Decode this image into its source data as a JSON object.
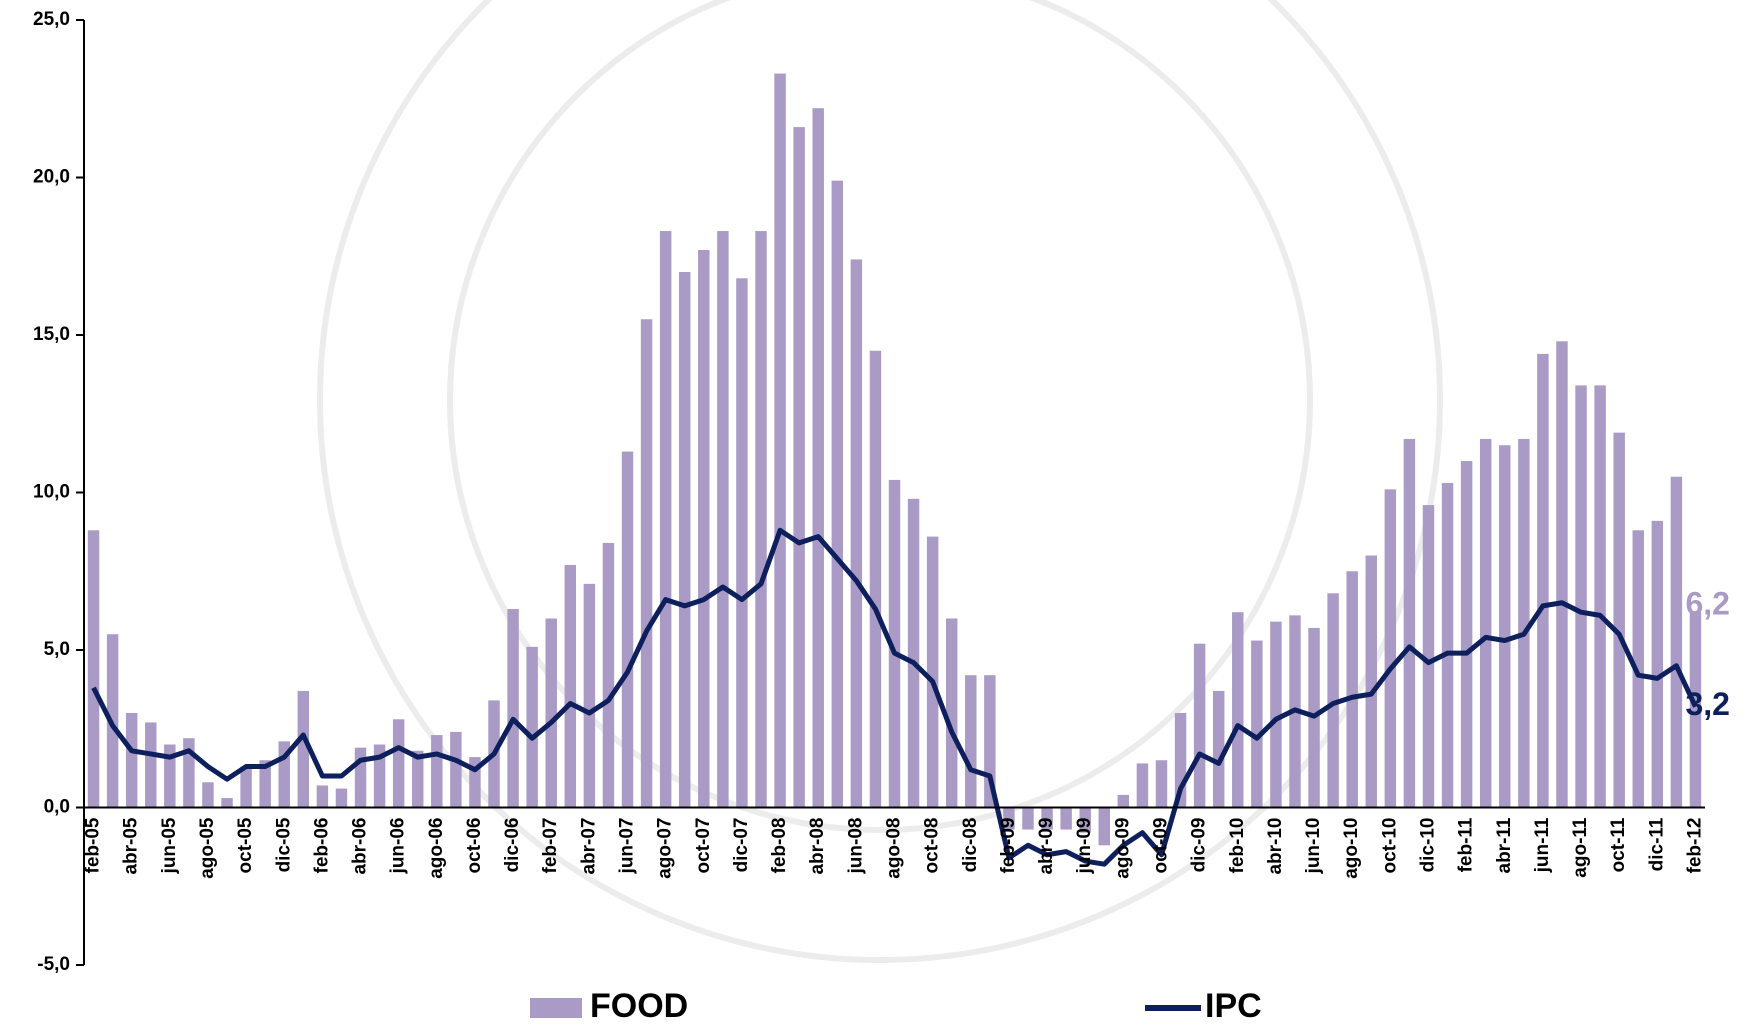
{
  "chart_data": {
    "type": "bar-line",
    "categories": [
      "feb-05",
      null,
      "abr-05",
      null,
      "jun-05",
      null,
      "ago-05",
      null,
      "oct-05",
      null,
      "dic-05",
      null,
      "feb-06",
      null,
      "abr-06",
      null,
      "jun-06",
      null,
      "ago-06",
      null,
      "oct-06",
      null,
      "dic-06",
      null,
      "feb-07",
      null,
      "abr-07",
      null,
      "jun-07",
      null,
      "ago-07",
      null,
      "oct-07",
      null,
      "dic-07",
      null,
      "feb-08",
      null,
      "abr-08",
      null,
      "jun-08",
      null,
      "ago-08",
      null,
      "oct-08",
      null,
      "dic-08",
      null,
      "feb-09",
      null,
      "abr-09",
      null,
      "jun-09",
      null,
      "ago-09",
      null,
      "oct-09",
      null,
      "dic-09",
      null,
      "feb-10",
      null,
      "abr-10",
      null,
      "jun-10",
      null,
      "ago-10",
      null,
      "oct-10",
      null,
      "dic-10",
      null,
      "feb-11",
      null,
      "abr-11",
      null,
      "jun-11",
      null,
      "ago-11",
      null,
      "oct-11",
      null,
      "dic-11",
      null,
      "feb-12"
    ],
    "series": [
      {
        "name": "FOOD",
        "type": "bar",
        "color": "#a99bc6",
        "values": [
          8.8,
          5.5,
          3.0,
          2.7,
          2.0,
          2.2,
          0.8,
          0.3,
          1.3,
          1.5,
          2.1,
          3.7,
          0.7,
          0.6,
          1.9,
          2.0,
          2.8,
          1.8,
          2.3,
          2.4,
          1.6,
          3.4,
          6.3,
          5.1,
          6.0,
          7.7,
          7.1,
          8.4,
          11.3,
          15.5,
          18.3,
          17.0,
          17.7,
          18.3,
          16.8,
          18.3,
          23.3,
          21.6,
          22.2,
          19.9,
          17.4,
          14.5,
          10.4,
          9.8,
          8.6,
          6.0,
          4.2,
          4.2,
          -0.7,
          -0.7,
          -0.7,
          -0.7,
          -0.8,
          -1.2,
          0.4,
          1.4,
          1.5,
          3.0,
          5.2,
          3.7,
          6.2,
          5.3,
          5.9,
          6.1,
          5.7,
          6.8,
          7.5,
          8.0,
          10.1,
          11.7,
          9.6,
          10.3,
          11.0,
          11.7,
          11.5,
          11.7,
          14.4,
          14.8,
          13.4,
          13.4,
          11.9,
          8.8,
          9.1,
          10.5,
          6.2
        ],
        "value_labels": [
          null,
          null,
          null,
          null,
          null,
          null,
          null,
          null,
          null,
          null,
          null,
          null,
          null,
          null,
          null,
          null,
          null,
          null,
          null,
          null,
          null,
          null,
          null,
          null,
          null,
          null,
          null,
          null,
          null,
          null,
          null,
          null,
          null,
          null,
          null,
          null,
          null,
          null,
          null,
          null,
          null,
          null,
          null,
          null,
          null,
          null,
          null,
          null,
          null,
          null,
          null,
          null,
          null,
          null,
          null,
          null,
          null,
          null,
          null,
          null,
          null,
          null,
          null,
          null,
          null,
          null,
          null,
          null,
          null,
          null,
          null,
          null,
          null,
          null,
          null,
          null,
          null,
          null,
          null,
          null,
          null,
          null,
          null,
          null,
          "6,2"
        ]
      },
      {
        "name": "IPC",
        "type": "line",
        "color": "#0d1f5c",
        "values": [
          3.8,
          2.6,
          1.8,
          1.7,
          1.6,
          1.8,
          1.3,
          0.9,
          1.3,
          1.3,
          1.6,
          2.3,
          1.0,
          1.0,
          1.5,
          1.6,
          1.9,
          1.6,
          1.7,
          1.5,
          1.2,
          1.7,
          2.8,
          2.2,
          2.7,
          3.3,
          3.0,
          3.4,
          4.3,
          5.6,
          6.6,
          6.4,
          6.6,
          7.0,
          6.6,
          7.1,
          8.8,
          8.4,
          8.6,
          7.9,
          7.2,
          6.3,
          4.9,
          4.6,
          4.0,
          2.4,
          1.2,
          1.0,
          -1.6,
          -1.2,
          -1.5,
          -1.4,
          -1.7,
          -1.8,
          -1.2,
          -0.8,
          -1.5,
          0.6,
          1.7,
          1.4,
          2.6,
          2.2,
          2.8,
          3.1,
          2.9,
          3.3,
          3.5,
          3.6,
          4.4,
          5.1,
          4.6,
          4.9,
          4.9,
          5.4,
          5.3,
          5.5,
          6.4,
          6.5,
          6.2,
          6.1,
          5.5,
          4.2,
          4.1,
          4.5,
          3.2
        ],
        "value_labels": [
          null,
          null,
          null,
          null,
          null,
          null,
          null,
          null,
          null,
          null,
          null,
          null,
          null,
          null,
          null,
          null,
          null,
          null,
          null,
          null,
          null,
          null,
          null,
          null,
          null,
          null,
          null,
          null,
          null,
          null,
          null,
          null,
          null,
          null,
          null,
          null,
          null,
          null,
          null,
          null,
          null,
          null,
          null,
          null,
          null,
          null,
          null,
          null,
          null,
          null,
          null,
          null,
          null,
          null,
          null,
          null,
          null,
          null,
          null,
          null,
          null,
          null,
          null,
          null,
          null,
          null,
          null,
          null,
          null,
          null,
          null,
          null,
          null,
          null,
          null,
          null,
          null,
          null,
          null,
          null,
          null,
          null,
          null,
          null,
          "3,2"
        ]
      }
    ],
    "ylim": [
      -5,
      25
    ],
    "yticks": [
      {
        "value": -5,
        "label": "-5,0"
      },
      {
        "value": 0,
        "label": "0,0"
      },
      {
        "value": 5,
        "label": "5,0"
      },
      {
        "value": 10,
        "label": "10,0"
      },
      {
        "value": 15,
        "label": "15,0"
      },
      {
        "value": 20,
        "label": "20,0"
      },
      {
        "value": 25,
        "label": "25,0"
      }
    ],
    "legend": "bottom"
  }
}
